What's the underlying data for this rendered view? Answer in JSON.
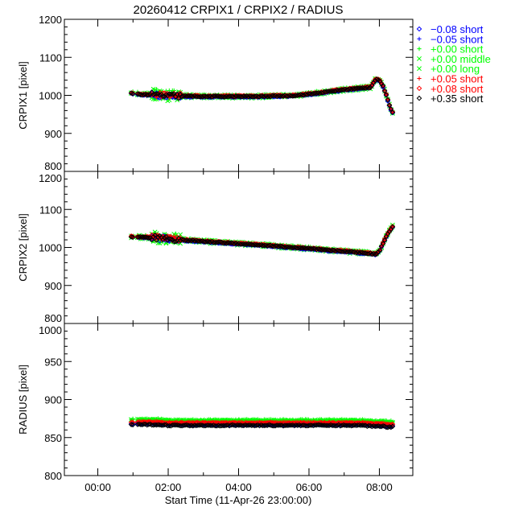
{
  "chart_data": {
    "type": "scatter",
    "title": "20260412 CRPIX1 / CRPIX2 / RADIUS",
    "xlabel": "Start Time (11-Apr-26 23:00:00)",
    "xlim": [
      -0.95,
      8.95
    ],
    "x_unit": "hours",
    "x_ticks": [
      0,
      2,
      4,
      6,
      8
    ],
    "x_tick_labels": [
      "00:00",
      "02:00",
      "04:00",
      "06:00",
      "08:00"
    ],
    "legend_position": "right",
    "series": [
      {
        "name": "−0.08 short",
        "marker": "diamond",
        "color": "#0000ff"
      },
      {
        "name": "−0.05 short",
        "marker": "plus",
        "color": "#0000ff"
      },
      {
        "name": "+0.00 short",
        "marker": "plus",
        "color": "#00ff00"
      },
      {
        "name": "+0.00 middle",
        "marker": "x",
        "color": "#00ff00"
      },
      {
        "name": "+0.00 long",
        "marker": "x",
        "color": "#00ff00"
      },
      {
        "name": "+0.05 short",
        "marker": "plus",
        "color": "#ff0000"
      },
      {
        "name": "+0.08 short",
        "marker": "diamond",
        "color": "#ff0000"
      },
      {
        "name": "+0.35 short",
        "marker": "diamond",
        "color": "#000000"
      }
    ],
    "x": [
      0.95,
      1.25,
      1.5,
      1.75,
      2.0,
      2.25,
      2.5,
      3.0,
      3.5,
      4.0,
      4.5,
      5.0,
      5.5,
      6.0,
      6.5,
      7.0,
      7.5,
      7.75,
      7.9,
      8.0,
      8.1,
      8.2,
      8.3,
      8.4
    ],
    "panels": [
      {
        "ylabel": "CRPIX1 [pixel]",
        "ylim": [
          800,
          1200
        ],
        "y_ticks": [
          "800",
          "900",
          "1000",
          "1100",
          "1200"
        ],
        "minor_step": 20,
        "base": [
          1006,
          1002,
          1002,
          1000,
          999,
          998,
          998,
          997,
          997,
          997,
          997,
          998,
          999,
          1003,
          1009,
          1015,
          1019,
          1021,
          1043,
          1040,
          1025,
          1000,
          968,
          950
        ],
        "offsets": [
          -1,
          0,
          3,
          2,
          -2,
          1,
          1,
          0
        ],
        "scatter": 2,
        "scatter_noisy": 10
      },
      {
        "ylabel": "CRPIX2 [pixel]",
        "ylim": [
          800,
          1200
        ],
        "y_ticks": [
          "800",
          "900",
          "1000",
          "1100",
          "1200"
        ],
        "minor_step": 20,
        "base": [
          1028,
          1027,
          1026,
          1025,
          1024,
          1021,
          1019,
          1016,
          1013,
          1010,
          1007,
          1004,
          1000,
          997,
          993,
          990,
          986,
          984,
          982,
          990,
          1010,
          1030,
          1045,
          1058
        ],
        "offsets": [
          -1,
          0,
          3,
          2,
          -2,
          1,
          1,
          0
        ],
        "scatter": 2,
        "scatter_noisy": 10
      },
      {
        "ylabel": "RADIUS [pixel]",
        "ylim": [
          800,
          1000
        ],
        "y_ticks": [
          "800",
          "850",
          "900",
          "950",
          "1000"
        ],
        "minor_step": 10,
        "base": [
          870,
          870,
          870,
          870,
          869,
          869,
          869,
          869,
          869,
          869,
          869,
          869,
          869,
          869,
          869,
          869,
          869,
          868,
          868,
          868,
          868,
          867,
          867,
          867
        ],
        "offsets": [
          -2,
          -1,
          4,
          3,
          3,
          1,
          0,
          -3
        ],
        "scatter": 1,
        "scatter_noisy": 1
      }
    ]
  }
}
